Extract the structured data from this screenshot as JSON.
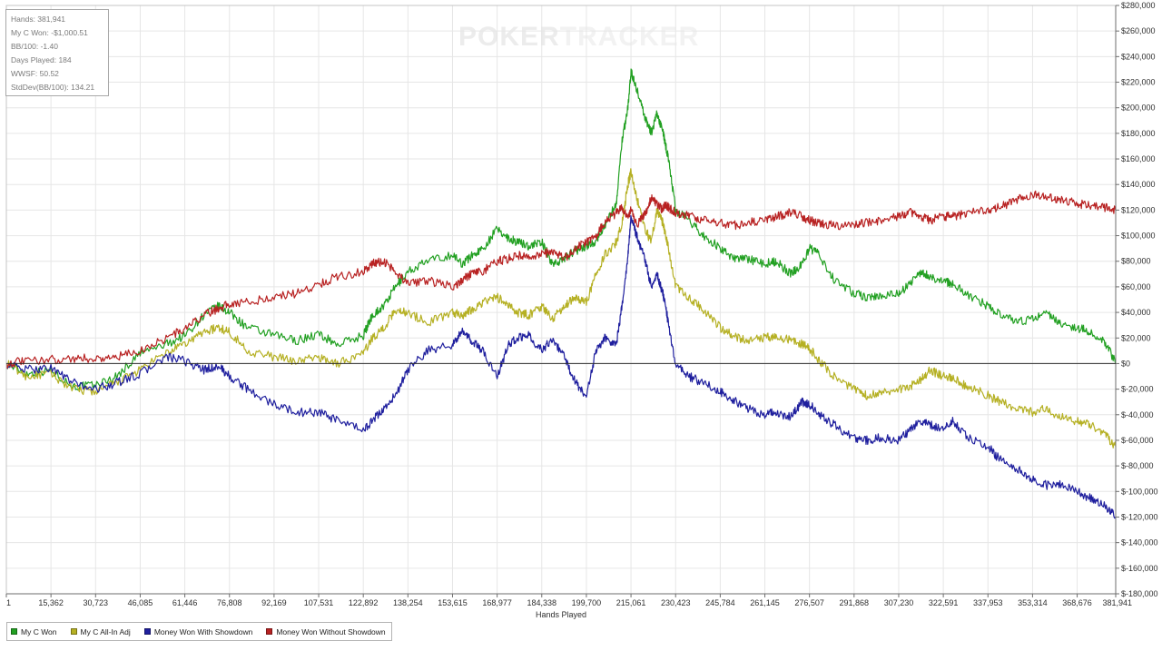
{
  "watermark": {
    "part1": "POKER",
    "part2": "TRACKER"
  },
  "stats": {
    "hands": "Hands: 381,941",
    "won": "My C Won: -$1,000.51",
    "bb100": "BB/100: -1.40",
    "days": "Days Played: 184",
    "wwsf": "WWSF: 50.52",
    "stddev": "StdDev(BB/100): 134.21"
  },
  "legend": [
    {
      "label": "My C Won",
      "color": "#22a022"
    },
    {
      "label": "My C All-In Adj",
      "color": "#b5b023"
    },
    {
      "label": "Money Won With Showdown",
      "color": "#1f1f9e"
    },
    {
      "label": "Money Won Without Showdown",
      "color": "#b82222"
    }
  ],
  "chart_data": {
    "type": "line",
    "xlabel": "Hands Played",
    "ylabel": "",
    "xlim": [
      1,
      381941
    ],
    "ylim": [
      -180000,
      280000
    ],
    "x_tick_values": [
      1,
      15362,
      30723,
      46085,
      61446,
      76808,
      92169,
      107531,
      122892,
      138254,
      153615,
      168977,
      184338,
      199700,
      215061,
      230423,
      245784,
      261145,
      276507,
      291868,
      307230,
      322591,
      337953,
      353314,
      368676,
      381941
    ],
    "x_tick_labels": [
      "1",
      "15,362",
      "30,723",
      "46,085",
      "61,446",
      "76,808",
      "92,169",
      "107,531",
      "122,892",
      "138,254",
      "153,615",
      "168,977",
      "184,338",
      "199,700",
      "215,061",
      "230,423",
      "245,784",
      "261,145",
      "276,507",
      "291,868",
      "307,230",
      "322,591",
      "337,953",
      "353,314",
      "368,676",
      "381,941"
    ],
    "y_tick_values": [
      280000,
      260000,
      240000,
      220000,
      200000,
      180000,
      160000,
      140000,
      120000,
      100000,
      80000,
      60000,
      40000,
      20000,
      0,
      -20000,
      -40000,
      -60000,
      -80000,
      -100000,
      -120000,
      -140000,
      -160000,
      -180000
    ],
    "y_tick_labels": [
      "$280,000",
      "$260,000",
      "$240,000",
      "$220,000",
      "$200,000",
      "$180,000",
      "$160,000",
      "$140,000",
      "$120,000",
      "$100,000",
      "$80,000",
      "$60,000",
      "$40,000",
      "$20,000",
      "$0",
      "$-20,000",
      "$-40,000",
      "$-60,000",
      "$-80,000",
      "$-100,000",
      "$-120,000",
      "$-140,000",
      "$-160,000",
      "$-180,000"
    ],
    "grid": true,
    "legend_position": "bottom-left",
    "series": [
      {
        "name": "My C Won",
        "color": "#22a022",
        "x": [
          1,
          7000,
          15362,
          23000,
          30723,
          38000,
          46085,
          55000,
          61446,
          68000,
          73000,
          76808,
          83000,
          92169,
          100000,
          107531,
          114000,
          122892,
          126000,
          130000,
          134000,
          138254,
          145000,
          153615,
          157000,
          160000,
          164000,
          168977,
          173000,
          176000,
          180000,
          184338,
          188000,
          192000,
          196000,
          199700,
          203000,
          206000,
          210000,
          212000,
          214000,
          215061,
          217000,
          220000,
          222000,
          224000,
          226000,
          227000,
          228000,
          230423,
          235000,
          240000,
          245784,
          250000,
          255000,
          261145,
          265000,
          270000,
          274000,
          276507,
          280000,
          285000,
          291868,
          296000,
          301000,
          307230,
          311000,
          315000,
          318000,
          322591,
          326000,
          331000,
          337953,
          342000,
          348000,
          353314,
          358000,
          363000,
          368676,
          373000,
          378000,
          381941
        ],
        "y": [
          0,
          -8000,
          -5000,
          -18000,
          -17000,
          -10000,
          8000,
          15000,
          22000,
          38000,
          45000,
          40000,
          28000,
          22000,
          18000,
          23000,
          15000,
          22000,
          38000,
          45000,
          60000,
          72000,
          80000,
          85000,
          78000,
          84000,
          90000,
          105000,
          98000,
          95000,
          92000,
          95000,
          78000,
          82000,
          88000,
          92000,
          96000,
          108000,
          125000,
          175000,
          200000,
          228000,
          215000,
          192000,
          180000,
          195000,
          182000,
          170000,
          160000,
          120000,
          112000,
          100000,
          90000,
          82000,
          82000,
          78000,
          80000,
          70000,
          78000,
          90000,
          85000,
          65000,
          55000,
          52000,
          53000,
          55000,
          62000,
          72000,
          68000,
          65000,
          62000,
          54000,
          45000,
          38000,
          32000,
          35000,
          40000,
          32000,
          28000,
          25000,
          18000,
          0
        ]
      },
      {
        "name": "My C All-In Adj",
        "color": "#b5b023",
        "x": [
          1,
          7000,
          15362,
          23000,
          30723,
          38000,
          46085,
          55000,
          61446,
          68000,
          73000,
          76808,
          83000,
          92169,
          100000,
          107531,
          114000,
          122892,
          126000,
          130000,
          134000,
          138254,
          145000,
          153615,
          157000,
          160000,
          164000,
          168977,
          173000,
          176000,
          180000,
          184338,
          188000,
          192000,
          196000,
          199700,
          203000,
          206000,
          210000,
          212000,
          214000,
          215061,
          217000,
          220000,
          222000,
          224000,
          226000,
          227000,
          228000,
          230423,
          235000,
          240000,
          245784,
          250000,
          255000,
          261145,
          265000,
          270000,
          274000,
          276507,
          280000,
          285000,
          291868,
          296000,
          301000,
          307230,
          311000,
          315000,
          318000,
          322591,
          326000,
          331000,
          337953,
          342000,
          348000,
          353314,
          358000,
          363000,
          368676,
          373000,
          378000,
          381941
        ],
        "y": [
          0,
          -10000,
          -8000,
          -20000,
          -22000,
          -15000,
          -5000,
          8000,
          15000,
          25000,
          28000,
          25000,
          10000,
          5000,
          2000,
          5000,
          0,
          8000,
          20000,
          28000,
          42000,
          40000,
          32000,
          40000,
          38000,
          42000,
          48000,
          52000,
          45000,
          40000,
          38000,
          45000,
          35000,
          45000,
          52000,
          48000,
          70000,
          85000,
          95000,
          110000,
          140000,
          150000,
          130000,
          105000,
          95000,
          120000,
          110000,
          100000,
          90000,
          60000,
          52000,
          42000,
          28000,
          22000,
          18000,
          20000,
          22000,
          18000,
          15000,
          12000,
          2000,
          -10000,
          -20000,
          -25000,
          -22000,
          -20000,
          -18000,
          -12000,
          -5000,
          -10000,
          -12000,
          -18000,
          -25000,
          -30000,
          -35000,
          -38000,
          -35000,
          -42000,
          -45000,
          -48000,
          -55000,
          -65000
        ]
      },
      {
        "name": "Money Won With Showdown",
        "color": "#1f1f9e",
        "x": [
          1,
          7000,
          15362,
          23000,
          30723,
          38000,
          46085,
          55000,
          61446,
          68000,
          73000,
          76808,
          83000,
          92169,
          100000,
          107531,
          114000,
          122892,
          126000,
          130000,
          134000,
          138254,
          145000,
          153615,
          157000,
          160000,
          164000,
          168977,
          173000,
          176000,
          180000,
          184338,
          188000,
          192000,
          196000,
          199700,
          203000,
          206000,
          210000,
          212000,
          214000,
          215061,
          217000,
          220000,
          222000,
          224000,
          226000,
          227000,
          228000,
          230423,
          235000,
          240000,
          245784,
          250000,
          255000,
          261145,
          265000,
          270000,
          274000,
          276507,
          280000,
          285000,
          291868,
          296000,
          301000,
          307230,
          311000,
          315000,
          318000,
          322591,
          326000,
          331000,
          337953,
          342000,
          348000,
          353314,
          358000,
          363000,
          368676,
          373000,
          378000,
          381941
        ],
        "y": [
          0,
          -5000,
          -3000,
          -15000,
          -20000,
          -15000,
          -8000,
          5000,
          2000,
          -5000,
          -2000,
          -10000,
          -20000,
          -32000,
          -38000,
          -38000,
          -45000,
          -52000,
          -45000,
          -35000,
          -25000,
          -5000,
          10000,
          15000,
          25000,
          18000,
          10000,
          -10000,
          15000,
          20000,
          22000,
          10000,
          20000,
          5000,
          -15000,
          -25000,
          10000,
          20000,
          15000,
          45000,
          85000,
          115000,
          100000,
          80000,
          60000,
          70000,
          55000,
          45000,
          30000,
          0,
          -10000,
          -15000,
          -22000,
          -28000,
          -35000,
          -40000,
          -38000,
          -42000,
          -30000,
          -32000,
          -40000,
          -48000,
          -58000,
          -60000,
          -58000,
          -60000,
          -52000,
          -45000,
          -48000,
          -50000,
          -45000,
          -58000,
          -65000,
          -75000,
          -82000,
          -90000,
          -95000,
          -95000,
          -100000,
          -105000,
          -110000,
          -120000
        ]
      },
      {
        "name": "Money Won Without Showdown",
        "color": "#b82222",
        "x": [
          1,
          7000,
          15362,
          23000,
          30723,
          38000,
          46085,
          55000,
          61446,
          68000,
          73000,
          76808,
          83000,
          92169,
          100000,
          107531,
          114000,
          122892,
          126000,
          130000,
          134000,
          138254,
          145000,
          153615,
          157000,
          160000,
          164000,
          168977,
          173000,
          176000,
          180000,
          184338,
          188000,
          192000,
          196000,
          199700,
          203000,
          206000,
          210000,
          212000,
          214000,
          215061,
          217000,
          220000,
          222000,
          224000,
          226000,
          227000,
          228000,
          230423,
          235000,
          240000,
          245784,
          250000,
          255000,
          261145,
          265000,
          270000,
          274000,
          276507,
          280000,
          285000,
          291868,
          296000,
          301000,
          307230,
          311000,
          315000,
          318000,
          322591,
          326000,
          331000,
          337953,
          342000,
          348000,
          353314,
          358000,
          363000,
          368676,
          373000,
          378000,
          381941
        ],
        "y": [
          0,
          2000,
          3000,
          4000,
          4000,
          5000,
          10000,
          20000,
          27000,
          38000,
          43000,
          47000,
          48000,
          52000,
          55000,
          62000,
          68000,
          72000,
          78000,
          80000,
          72000,
          62000,
          65000,
          60000,
          65000,
          70000,
          72000,
          80000,
          82000,
          85000,
          82000,
          85000,
          88000,
          82000,
          90000,
          95000,
          100000,
          110000,
          118000,
          122000,
          115000,
          120000,
          108000,
          118000,
          130000,
          125000,
          120000,
          125000,
          122000,
          118000,
          115000,
          112000,
          110000,
          108000,
          110000,
          112000,
          115000,
          118000,
          115000,
          112000,
          110000,
          108000,
          108000,
          110000,
          112000,
          115000,
          118000,
          115000,
          112000,
          115000,
          115000,
          118000,
          120000,
          122000,
          128000,
          132000,
          130000,
          128000,
          125000,
          124000,
          122000,
          120000
        ]
      }
    ]
  }
}
